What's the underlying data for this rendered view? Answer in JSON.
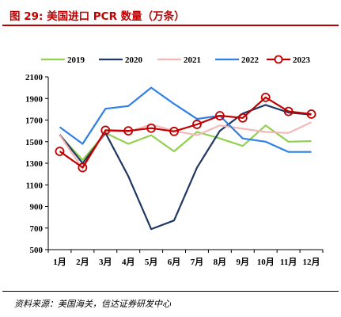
{
  "figure": {
    "title": "图 29:  美国进口 PCR 数量（万条）",
    "source": "资料来源：美国海关，信达证券研发中心"
  },
  "chart_data": {
    "type": "line",
    "categories": [
      "1月",
      "2月",
      "3月",
      "4月",
      "5月",
      "6月",
      "7月",
      "8月",
      "9月",
      "10月",
      "11月",
      "12月"
    ],
    "ylim": [
      500,
      2100
    ],
    "yticks": [
      500,
      700,
      900,
      1100,
      1300,
      1500,
      1700,
      1900,
      2100
    ],
    "grid": false,
    "legend_position": "top",
    "series": [
      {
        "name": "2019",
        "color": "#92d050",
        "marker": "none",
        "values": [
          1560,
          1330,
          1580,
          1480,
          1560,
          1410,
          1590,
          1530,
          1460,
          1650,
          1500,
          1505
        ]
      },
      {
        "name": "2020",
        "color": "#1f3864",
        "marker": "none",
        "values": [
          1565,
          1300,
          1580,
          1180,
          690,
          770,
          1260,
          1600,
          1760,
          1840,
          1770,
          1750
        ]
      },
      {
        "name": "2021",
        "color": "#f4b8b8",
        "marker": "none",
        "values": [
          1560,
          1250,
          1600,
          1590,
          1660,
          1600,
          1560,
          1650,
          1620,
          1590,
          1580,
          1680
        ]
      },
      {
        "name": "2022",
        "color": "#2e80e6",
        "marker": "none",
        "values": [
          1635,
          1480,
          1805,
          1830,
          2000,
          1850,
          1710,
          1740,
          1530,
          1500,
          1405,
          1405
        ]
      },
      {
        "name": "2023",
        "color": "#c00000",
        "marker": "circle",
        "values": [
          1410,
          1260,
          1605,
          1600,
          1625,
          1595,
          1660,
          1740,
          1720,
          1910,
          1780,
          1755
        ]
      }
    ]
  }
}
